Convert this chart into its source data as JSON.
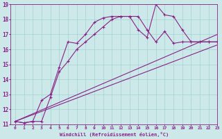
{
  "xlabel": "Windchill (Refroidissement éolien,°C)",
  "xlim": [
    -0.5,
    23
  ],
  "ylim": [
    11,
    19
  ],
  "xticks": [
    0,
    1,
    2,
    3,
    4,
    5,
    6,
    7,
    8,
    9,
    10,
    11,
    12,
    13,
    14,
    15,
    16,
    17,
    18,
    19,
    20,
    21,
    22,
    23
  ],
  "yticks": [
    11,
    12,
    13,
    14,
    15,
    16,
    17,
    18,
    19
  ],
  "bg_color": "#cce8e8",
  "line_color": "#882288",
  "series": [
    {
      "x": [
        0,
        1,
        2,
        3,
        4,
        5,
        6,
        7,
        8,
        9,
        10,
        11,
        12,
        13,
        14,
        15,
        16,
        17,
        18,
        19,
        20,
        21,
        22,
        23
      ],
      "y": [
        11.2,
        11.1,
        11.2,
        12.6,
        13.0,
        14.8,
        16.5,
        16.4,
        17.0,
        17.8,
        18.1,
        18.2,
        18.2,
        18.2,
        17.3,
        16.8,
        19.0,
        18.3,
        18.2,
        17.3,
        16.5,
        16.5,
        16.5,
        16.5
      ]
    },
    {
      "x": [
        0,
        1,
        2,
        3,
        4,
        5,
        6,
        7,
        8,
        9,
        10,
        11,
        12,
        13,
        14,
        15,
        16,
        17,
        18,
        19,
        20,
        21,
        22,
        23
      ],
      "y": [
        11.2,
        11.1,
        11.2,
        11.2,
        12.8,
        14.5,
        15.2,
        16.0,
        16.5,
        17.0,
        17.5,
        18.0,
        18.2,
        18.2,
        18.2,
        17.3,
        16.5,
        17.2,
        16.4,
        16.5,
        16.5,
        16.5,
        16.5,
        16.5
      ]
    },
    {
      "x": [
        0,
        23
      ],
      "y": [
        11.2,
        17.0
      ]
    },
    {
      "x": [
        0,
        23
      ],
      "y": [
        11.2,
        16.3
      ]
    }
  ]
}
